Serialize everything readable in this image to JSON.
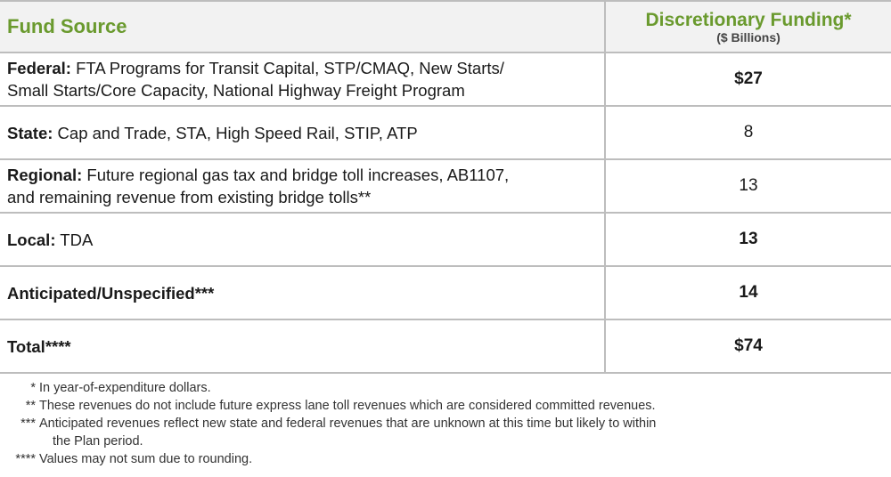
{
  "table": {
    "header": {
      "source": "Fund Source",
      "funding": "Discretionary Funding*",
      "unit": "($ Billions)"
    },
    "rows": [
      {
        "label": "Federal:",
        "desc": " FTA Programs for Transit Capital, STP/CMAQ, New Starts/",
        "desc2": "Small Starts/Core Capacity, National Highway Freight Program",
        "value": "$27"
      },
      {
        "label": "State:",
        "desc": " Cap and Trade, STA, High Speed Rail, STIP, ATP",
        "value": "8"
      },
      {
        "label": "Regional:",
        "desc": " Future regional gas tax and bridge toll increases, AB1107,",
        "desc2": "and remaining revenue from existing bridge tolls**",
        "value": "13"
      },
      {
        "label": "Local:",
        "desc": " TDA",
        "value": "13"
      },
      {
        "label": "Anticipated/Unspecified***",
        "desc": "",
        "value": "14"
      },
      {
        "label": "Total****",
        "desc": "",
        "value": "$74"
      }
    ]
  },
  "footnotes": [
    {
      "mark": "*",
      "text": "In year-of-expenditure dollars."
    },
    {
      "mark": "**",
      "text": "These revenues do not include future express lane toll revenues which are considered committed revenues."
    },
    {
      "mark": "***",
      "text": "Anticipated revenues reflect new state and federal revenues that are unknown at this time but likely to within",
      "text2": "the Plan period."
    },
    {
      "mark": "****",
      "text": "Values may not sum due to rounding."
    }
  ]
}
